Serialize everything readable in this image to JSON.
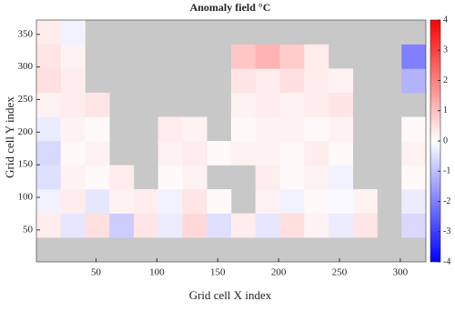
{
  "chart_data": {
    "type": "heatmap",
    "title": "Anomaly  field °C",
    "x_label": "Grid cell X index",
    "y_label": "Grid cell Y index",
    "x": [
      11,
      31,
      51,
      71,
      91,
      111,
      131,
      151,
      171,
      191,
      211,
      231,
      251,
      271,
      291,
      311
    ],
    "y": [
      20,
      57,
      94,
      131,
      168,
      205,
      242,
      279,
      316,
      353
    ],
    "values": [
      [
        null,
        null,
        null,
        null,
        null,
        null,
        null,
        null,
        null,
        null,
        null,
        null,
        null,
        null,
        null,
        null
      ],
      [
        0.3,
        -0.4,
        0.5,
        -0.8,
        0.4,
        -0.3,
        0.6,
        -0.5,
        0.3,
        -0.4,
        0.5,
        0.2,
        -0.3,
        0.4,
        null,
        -0.6
      ],
      [
        -0.2,
        0.3,
        -0.4,
        0.2,
        0.3,
        -0.2,
        0.4,
        0.1,
        null,
        0.2,
        -0.2,
        0.1,
        -0.1,
        0.2,
        null,
        -0.3
      ],
      [
        -0.5,
        0.2,
        0.1,
        0.3,
        null,
        0.1,
        0.2,
        null,
        null,
        0.3,
        0.1,
        0.2,
        -0.2,
        null,
        null,
        0.1
      ],
      [
        -0.6,
        0.1,
        0.2,
        null,
        null,
        0.2,
        0.3,
        0.1,
        0.2,
        0.2,
        0.1,
        0.3,
        0.1,
        null,
        null,
        0.2
      ],
      [
        -0.3,
        0.2,
        0.1,
        null,
        null,
        0.3,
        0.2,
        null,
        0.1,
        0.2,
        0.2,
        0.1,
        0.2,
        null,
        null,
        0.1
      ],
      [
        0.2,
        0.3,
        0.4,
        null,
        null,
        null,
        null,
        null,
        0.2,
        0.3,
        0.2,
        0.3,
        0.4,
        null,
        null,
        null
      ],
      [
        0.5,
        0.3,
        null,
        null,
        null,
        null,
        null,
        null,
        0.4,
        0.3,
        0.5,
        0.3,
        0.2,
        null,
        null,
        -1.2
      ],
      [
        0.4,
        0.2,
        null,
        null,
        null,
        null,
        null,
        null,
        0.9,
        1.2,
        0.8,
        0.3,
        null,
        null,
        null,
        -2.0
      ],
      [
        0.3,
        -0.2,
        null,
        null,
        null,
        null,
        null,
        null,
        null,
        null,
        null,
        null,
        null,
        null,
        null,
        null
      ]
    ],
    "cell_width": 20,
    "cell_height": 37,
    "xlim": [
      1,
      321
    ],
    "ylim": [
      1,
      372
    ],
    "xticks": [
      50,
      100,
      150,
      200,
      250,
      300
    ],
    "yticks": [
      50,
      100,
      150,
      200,
      250,
      300,
      350
    ],
    "missing_color": "#c8c8c8",
    "colorbar": {
      "lim": [
        -4,
        4
      ],
      "ticks": [
        -4,
        -3,
        -2,
        -1,
        0,
        1,
        2,
        3,
        4
      ],
      "colors": [
        "#0000ff",
        "#ffffff",
        "#ff0000"
      ]
    }
  }
}
